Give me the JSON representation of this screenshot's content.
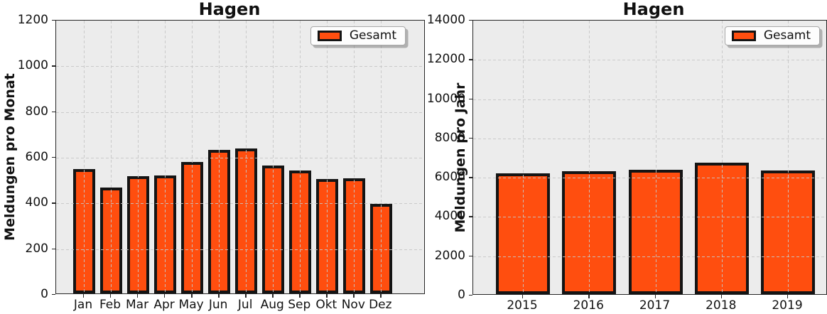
{
  "figure": {
    "background": "#ffffff",
    "description": "Two bar charts for the city Hagen: reports per month and reports per year"
  },
  "colors": {
    "bar_fill": "#FF4E0F",
    "bar_edge": "#141414",
    "plot_background": "#ECECEC",
    "gridline": "#C6C6C6",
    "spine": "#262626",
    "text": "#111111",
    "legend_background": "#FDFDFD"
  },
  "chart_data": [
    {
      "type": "bar",
      "title": "Hagen",
      "xlabel": "",
      "ylabel": "Meldungen pro Monat",
      "categories": [
        "Jan",
        "Feb",
        "Mar",
        "Apr",
        "May",
        "Jun",
        "Jul",
        "Aug",
        "Sep",
        "Okt",
        "Nov",
        "Dez"
      ],
      "values": [
        545,
        463,
        513,
        517,
        576,
        629,
        633,
        559,
        538,
        500,
        504,
        392
      ],
      "ylim": [
        0,
        1200
      ],
      "yticks": [
        0,
        200,
        400,
        600,
        800,
        1000,
        1200
      ],
      "legend": [
        "Gesamt"
      ],
      "legend_position": "upper right",
      "grid": true,
      "grid_style": "dashed",
      "grid_above_bars": true,
      "bar_color": "#FF4E0F",
      "bar_edge_color": "#141414"
    },
    {
      "type": "bar",
      "title": "Hagen",
      "xlabel": "",
      "ylabel": "Meldungen pro Jahr",
      "categories": [
        "2015",
        "2016",
        "2017",
        "2018",
        "2019"
      ],
      "values": [
        6150,
        6270,
        6340,
        6700,
        6290
      ],
      "ylim": [
        0,
        14000
      ],
      "yticks": [
        0,
        2000,
        4000,
        6000,
        8000,
        10000,
        12000,
        14000
      ],
      "legend": [
        "Gesamt"
      ],
      "legend_position": "upper right",
      "grid": true,
      "grid_style": "dashed",
      "grid_above_bars": true,
      "bar_color": "#FF4E0F",
      "bar_edge_color": "#141414"
    }
  ]
}
